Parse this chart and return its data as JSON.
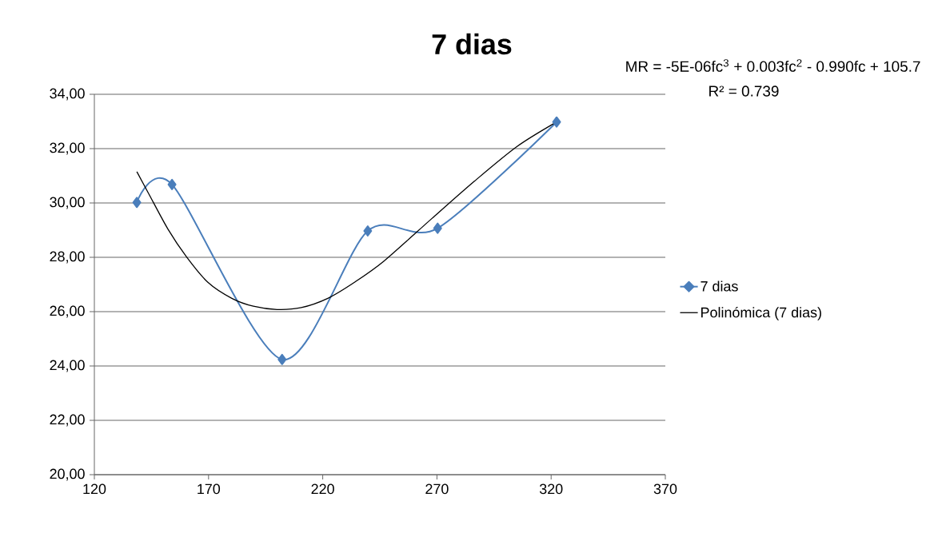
{
  "chart_data": {
    "type": "line",
    "title": "7 dias",
    "annotations": [
      "MR = -5E-06fc$^{3}$ + 0.003fc$^{2}$ - 0.990fc + 105.7",
      "R² = 0.739"
    ],
    "series": [
      {
        "name": "7 dias",
        "color": "#4a7ebb",
        "marker": "diamond",
        "x": [
          138.6,
          154,
          202.2,
          239.7,
          270.3,
          322.4
        ],
        "values": [
          30.02,
          30.68,
          24.24,
          28.97,
          29.07,
          32.98
        ]
      },
      {
        "name": "Polinómica (7 dias)",
        "color": "#000000",
        "marker": "none",
        "x": [
          138.6,
          144.0,
          152.2,
          160.4,
          169.7,
          180.2,
          189.6,
          200.0,
          210.6,
          222.2,
          233.9,
          246.8,
          267.8,
          286.4,
          305.1,
          322.4
        ],
        "values": [
          31.15,
          30.31,
          29.04,
          28.01,
          27.08,
          26.49,
          26.2,
          26.08,
          26.15,
          26.49,
          27.08,
          27.86,
          29.43,
          30.8,
          32.08,
          32.98
        ]
      }
    ],
    "xlim": [
      120,
      370
    ],
    "xticks": [
      120,
      170,
      220,
      270,
      320,
      370
    ],
    "ylim": [
      20,
      34
    ],
    "yticks": [
      {
        "value": 20,
        "label": "20,00"
      },
      {
        "value": 22,
        "label": "22,00"
      },
      {
        "value": 24,
        "label": "24,00"
      },
      {
        "value": 26,
        "label": "26,00"
      },
      {
        "value": 28,
        "label": "28,00"
      },
      {
        "value": 30,
        "label": "30,00"
      },
      {
        "value": 32,
        "label": "32,00"
      },
      {
        "value": 34,
        "label": "34,00"
      }
    ],
    "grid": "y",
    "legend": "right"
  }
}
